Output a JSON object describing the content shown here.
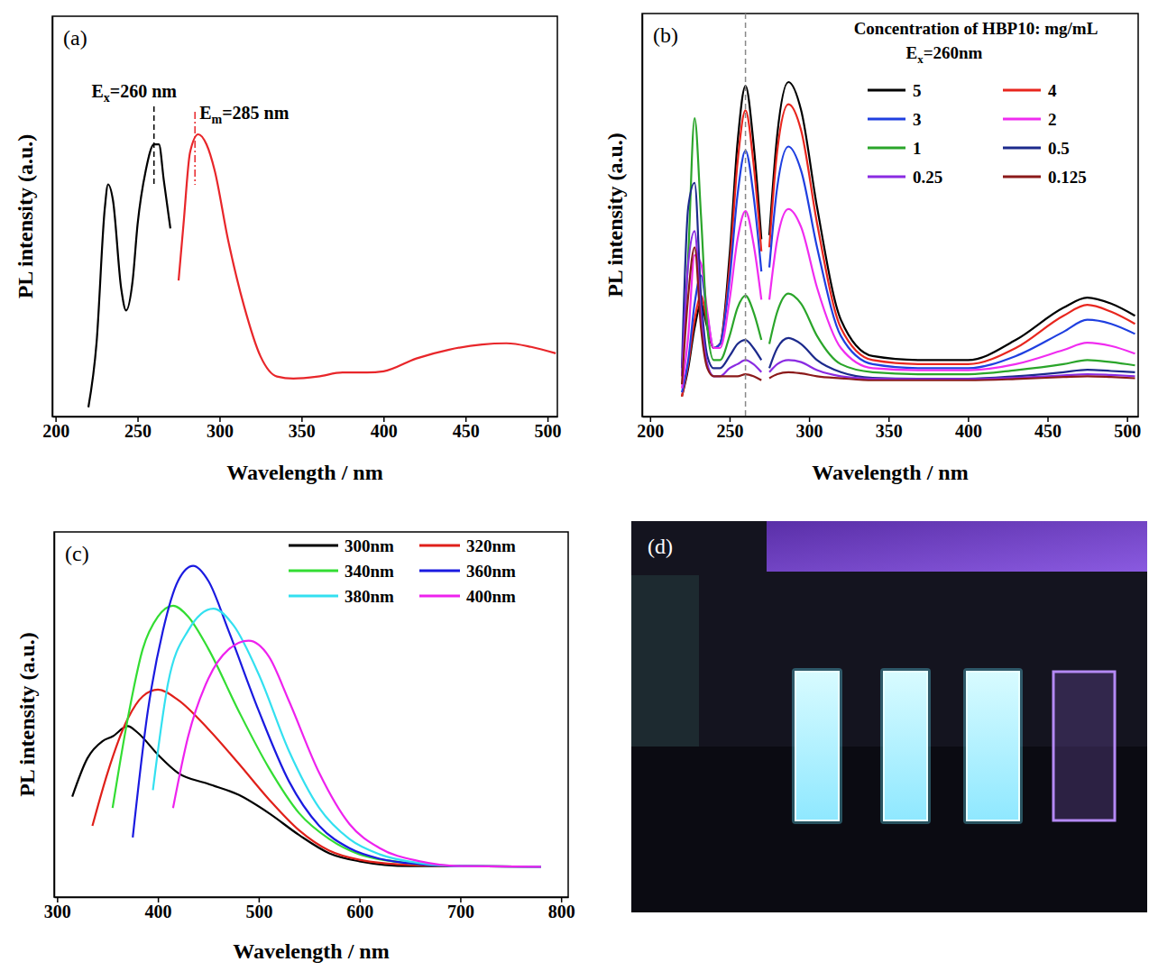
{
  "chart_data": [
    {
      "type": "line",
      "panel_label": "(a)",
      "x_label": "Wavelength / nm",
      "y_label": "PL intensity (a.u.)",
      "xlim": [
        198,
        506
      ],
      "xticks": [
        200,
        250,
        300,
        350,
        400,
        450,
        500
      ],
      "ylim": [
        0,
        100
      ],
      "yticks": [],
      "tick_labels": "x",
      "annotations": [
        {
          "base": "E",
          "sub": "x",
          "text": "=260 nm",
          "x": 260,
          "color": "#000000",
          "line_style": "dashed"
        },
        {
          "base": "E",
          "sub": "m",
          "text": "=285 nm",
          "x": 285,
          "color": "#e8262a",
          "line_style": "dashdot"
        }
      ],
      "series": [
        {
          "color": "#000000",
          "x": [
            220,
            225,
            230,
            232,
            235,
            240,
            243,
            247,
            250,
            255,
            260,
            263,
            266,
            270
          ],
          "values": [
            2.3,
            18.5,
            52,
            58,
            54,
            32,
            26.5,
            34,
            48,
            61.5,
            68,
            68,
            59,
            47
          ]
        },
        {
          "color": "#e8262a",
          "x": [
            275,
            278,
            282,
            287,
            292,
            297,
            305,
            315,
            325,
            335,
            345,
            360,
            375,
            390,
            400,
            420,
            440,
            460,
            475,
            490,
            505
          ],
          "values": [
            34,
            48,
            66,
            70.5,
            68,
            61.5,
            44.5,
            27.5,
            15,
            10,
            9.5,
            10,
            11,
            11,
            11.3,
            14.5,
            16.7,
            18,
            18.3,
            17.4,
            15.8
          ]
        }
      ]
    },
    {
      "type": "line",
      "panel_label": "(b)",
      "x_label": "Wavelength / nm",
      "y_label": "PL intensity (a.u.)",
      "xlim": [
        195,
        507
      ],
      "xticks": [
        200,
        250,
        300,
        350,
        400,
        450,
        500
      ],
      "ylim": [
        0,
        100
      ],
      "yticks": [],
      "tick_labels": "x",
      "legend": "upper right",
      "legend_title": "Concentration of HBP10: mg/mL",
      "legend_subtitle": {
        "base": "E",
        "sub": "x",
        "text": "=260nm"
      },
      "annotations": [
        {
          "x": 260,
          "color": "#888888",
          "line_style": "dashed"
        }
      ],
      "x": [
        220,
        224,
        228,
        232,
        236,
        240,
        244,
        250,
        255,
        260,
        265,
        270,
        272,
        275,
        280,
        287,
        295,
        305,
        320,
        340,
        370,
        400,
        430,
        460,
        475,
        490,
        505
      ],
      "series": [
        {
          "name": "5",
          "color": "#000000",
          "values": [
            5,
            12,
            22,
            28,
            22,
            17,
            18,
            40,
            68,
            82,
            68,
            44,
            null,
            45,
            70,
            83,
            76,
            52,
            24,
            15,
            14,
            14,
            19,
            27,
            29.5,
            28,
            25
          ]
        },
        {
          "name": "4",
          "color": "#e8261e",
          "values": [
            5,
            13,
            24,
            30,
            23,
            17,
            18,
            37,
            63,
            76,
            63,
            41,
            null,
            42,
            66,
            77.5,
            71,
            48,
            22,
            14,
            13,
            13,
            17,
            25,
            27.7,
            26,
            23
          ]
        },
        {
          "name": "3",
          "color": "#1f3fe0",
          "values": [
            6,
            14,
            28,
            35,
            25,
            17,
            18,
            34,
            55,
            66,
            55,
            36,
            null,
            37,
            57,
            67,
            61,
            42,
            20,
            13,
            12,
            12,
            15,
            21,
            24,
            23,
            20.5
          ]
        },
        {
          "name": "2",
          "color": "#f02cf0",
          "values": [
            7,
            20,
            40,
            38,
            26,
            17,
            17,
            29,
            44,
            51,
            43,
            29,
            null,
            29,
            44,
            51.5,
            47,
            32,
            17,
            12,
            11.5,
            11.5,
            13,
            16.5,
            18.3,
            17.5,
            15.6
          ]
        },
        {
          "name": "1",
          "color": "#2aa52a",
          "values": [
            10,
            40,
            74,
            50,
            22,
            14,
            14,
            20,
            27,
            30,
            26,
            19,
            null,
            18,
            26,
            30.5,
            28,
            20,
            13,
            11,
            10.5,
            10.5,
            11.5,
            13,
            14,
            13.5,
            12.7
          ]
        },
        {
          "name": "0.5",
          "color": "#1c2a8c",
          "values": [
            12,
            52,
            58,
            30,
            15,
            12,
            12,
            15,
            18,
            19,
            17,
            14,
            null,
            12,
            17,
            19.5,
            18,
            14,
            11,
            9.6,
            9.4,
            9.4,
            10,
            11,
            11.6,
            11.3,
            11
          ]
        },
        {
          "name": "0.25",
          "color": "#8a2be2",
          "values": [
            10,
            38,
            46,
            25,
            13,
            10,
            10,
            12,
            13,
            14,
            13,
            11,
            null,
            11,
            13,
            14,
            13.5,
            11.5,
            10,
            9.4,
            9.3,
            9.3,
            9.6,
            10.2,
            10.5,
            10.3,
            10
          ]
        },
        {
          "name": "0.125",
          "color": "#8b1a1a",
          "values": [
            8,
            30,
            42,
            22,
            12,
            10,
            10,
            10,
            10,
            10.5,
            10,
            9,
            null,
            9.5,
            10.5,
            11,
            10.7,
            10,
            9.5,
            9,
            9,
            9,
            9.3,
            9.8,
            10,
            9.8,
            9.5
          ]
        }
      ]
    },
    {
      "type": "line",
      "panel_label": "(c)",
      "x_label": "Wavelength / nm",
      "y_label": "PL intensity (a.u.)",
      "xlim": [
        297,
        807
      ],
      "xticks": [
        300,
        400,
        500,
        600,
        700,
        800
      ],
      "ylim": [
        0,
        100
      ],
      "yticks": [],
      "tick_labels": "x",
      "legend": "upper right",
      "series": [
        {
          "name": "300nm",
          "color": "#000000",
          "x": [
            315,
            330,
            345,
            355,
            370,
            380,
            400,
            420,
            450,
            480,
            510,
            540,
            570,
            600,
            650,
            700
          ],
          "values": [
            27.5,
            38,
            42.7,
            44,
            46.8,
            45,
            39,
            34,
            31,
            28,
            23,
            17,
            12,
            9.8,
            8.5,
            8.5
          ]
        },
        {
          "name": "320nm",
          "color": "#e0201a",
          "x": [
            335,
            350,
            370,
            385,
            400,
            420,
            450,
            480,
            510,
            540,
            570,
            600,
            650,
            700,
            780
          ],
          "values": [
            19.5,
            34,
            48.8,
            55,
            56.8,
            54,
            46,
            36.6,
            26.8,
            18.3,
            12.7,
            10.2,
            8.8,
            8.5,
            8.3
          ]
        },
        {
          "name": "340nm",
          "color": "#33dd33",
          "x": [
            355,
            370,
            385,
            400,
            415,
            430,
            450,
            480,
            510,
            540,
            570,
            600,
            650,
            700,
            780
          ],
          "values": [
            24.4,
            48.8,
            68,
            76.8,
            79.8,
            76.8,
            68,
            51,
            35.4,
            23,
            15.9,
            11.7,
            9.3,
            8.5,
            8.3
          ]
        },
        {
          "name": "360nm",
          "color": "#1a1ae0",
          "x": [
            375,
            390,
            405,
            420,
            435,
            450,
            470,
            500,
            530,
            560,
            590,
            620,
            660,
            700,
            780
          ],
          "values": [
            16.3,
            51,
            73,
            86.6,
            90.7,
            86.6,
            73,
            51,
            31.7,
            19.5,
            13.4,
            10.5,
            9,
            8.5,
            8.3
          ]
        },
        {
          "name": "380nm",
          "color": "#33e0f0",
          "x": [
            395,
            410,
            430,
            455,
            475,
            500,
            530,
            560,
            590,
            620,
            660,
            700,
            780
          ],
          "values": [
            29.3,
            58.5,
            73,
            79,
            74.4,
            61,
            40,
            24.4,
            15.9,
            11.7,
            9.3,
            8.5,
            8.3
          ]
        },
        {
          "name": "400nm",
          "color": "#ee22ee",
          "x": [
            415,
            430,
            450,
            470,
            490,
            510,
            530,
            560,
            590,
            620,
            660,
            700,
            780
          ],
          "values": [
            24.4,
            44,
            59.8,
            67.8,
            70.2,
            65.9,
            53.7,
            34,
            20,
            13.4,
            9.8,
            8.5,
            8.3
          ]
        }
      ]
    }
  ],
  "photo": {
    "label": "(d)"
  }
}
